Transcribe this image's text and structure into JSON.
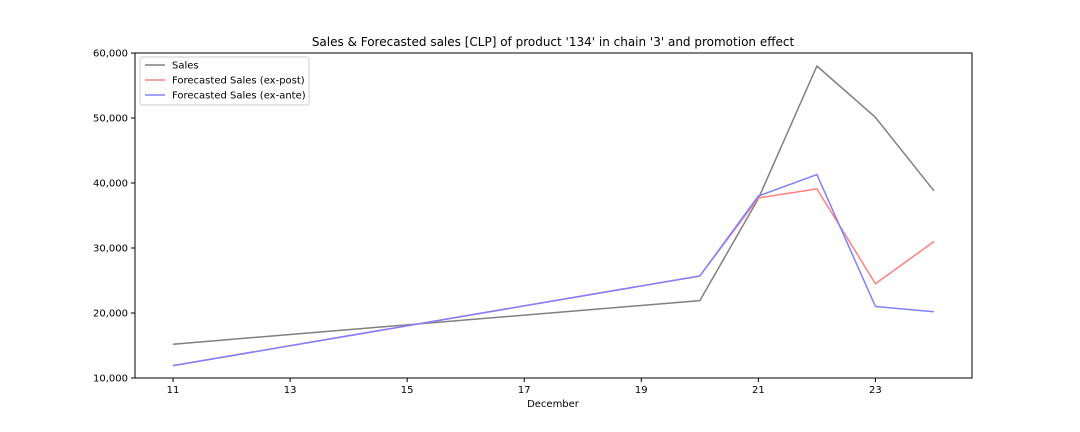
{
  "chart_data": {
    "type": "line",
    "title": "Sales & Forecasted sales [CLP] of product '134' in chain '3' and promotion effect",
    "xlabel": "December",
    "ylabel": "",
    "x": [
      11,
      20,
      21,
      22,
      23,
      24
    ],
    "x_ticks": [
      "11",
      "13",
      "15",
      "17",
      "19",
      "21",
      "23"
    ],
    "x_tick_values": [
      11,
      13,
      15,
      17,
      19,
      21,
      23
    ],
    "xlim": [
      10.35,
      24.65
    ],
    "y_ticks": [
      "10,000",
      "20,000",
      "30,000",
      "40,000",
      "50,000",
      "60,000"
    ],
    "y_tick_values": [
      10000,
      20000,
      30000,
      40000,
      50000,
      60000
    ],
    "ylim": [
      10000,
      60000
    ],
    "grid": false,
    "legend_position": "top-left",
    "series": [
      {
        "name": "Sales",
        "color": "#808080",
        "values": [
          15200,
          21900,
          37600,
          58000,
          50100,
          38800
        ]
      },
      {
        "name": "Forecasted Sales (ex-post)",
        "color": "#ff8080",
        "values": [
          11900,
          25700,
          37700,
          39100,
          24500,
          31000
        ]
      },
      {
        "name": "Forecasted Sales (ex-ante)",
        "color": "#8080ff",
        "values": [
          11900,
          25700,
          38000,
          41300,
          21000,
          20200
        ]
      }
    ]
  }
}
